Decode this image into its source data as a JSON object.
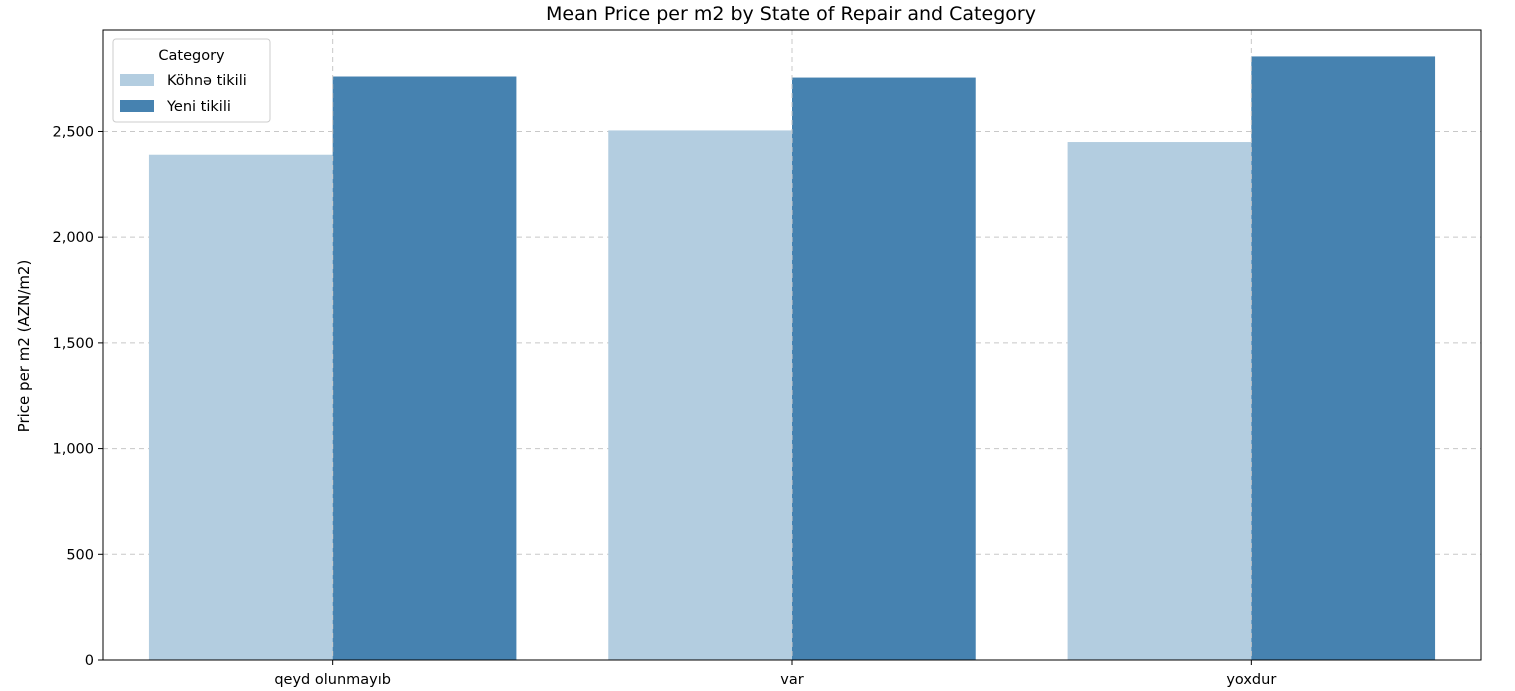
{
  "chart_data": {
    "type": "bar",
    "title": "Mean Price per m2 by State of Repair and Category",
    "xlabel": "",
    "ylabel": "Price per m2 (AZN/m2)",
    "categories": [
      "qeyd olunmayıb",
      "var",
      "yoxdur"
    ],
    "series": [
      {
        "name": "Köhnə tikili",
        "color": "#b3cde0",
        "values": [
          2390,
          2505,
          2450
        ]
      },
      {
        "name": "Yeni tikili",
        "color": "#4682b0",
        "values": [
          2760,
          2755,
          2855
        ]
      }
    ],
    "ylim": [
      0,
      2980
    ],
    "yticks": [
      0,
      500,
      1000,
      1500,
      2000,
      2500
    ],
    "ytick_labels": [
      "0",
      "500",
      "1,000",
      "1,500",
      "2,000",
      "2,500"
    ],
    "grid": true,
    "legend": {
      "title": "Category",
      "placement": "top-left"
    }
  }
}
